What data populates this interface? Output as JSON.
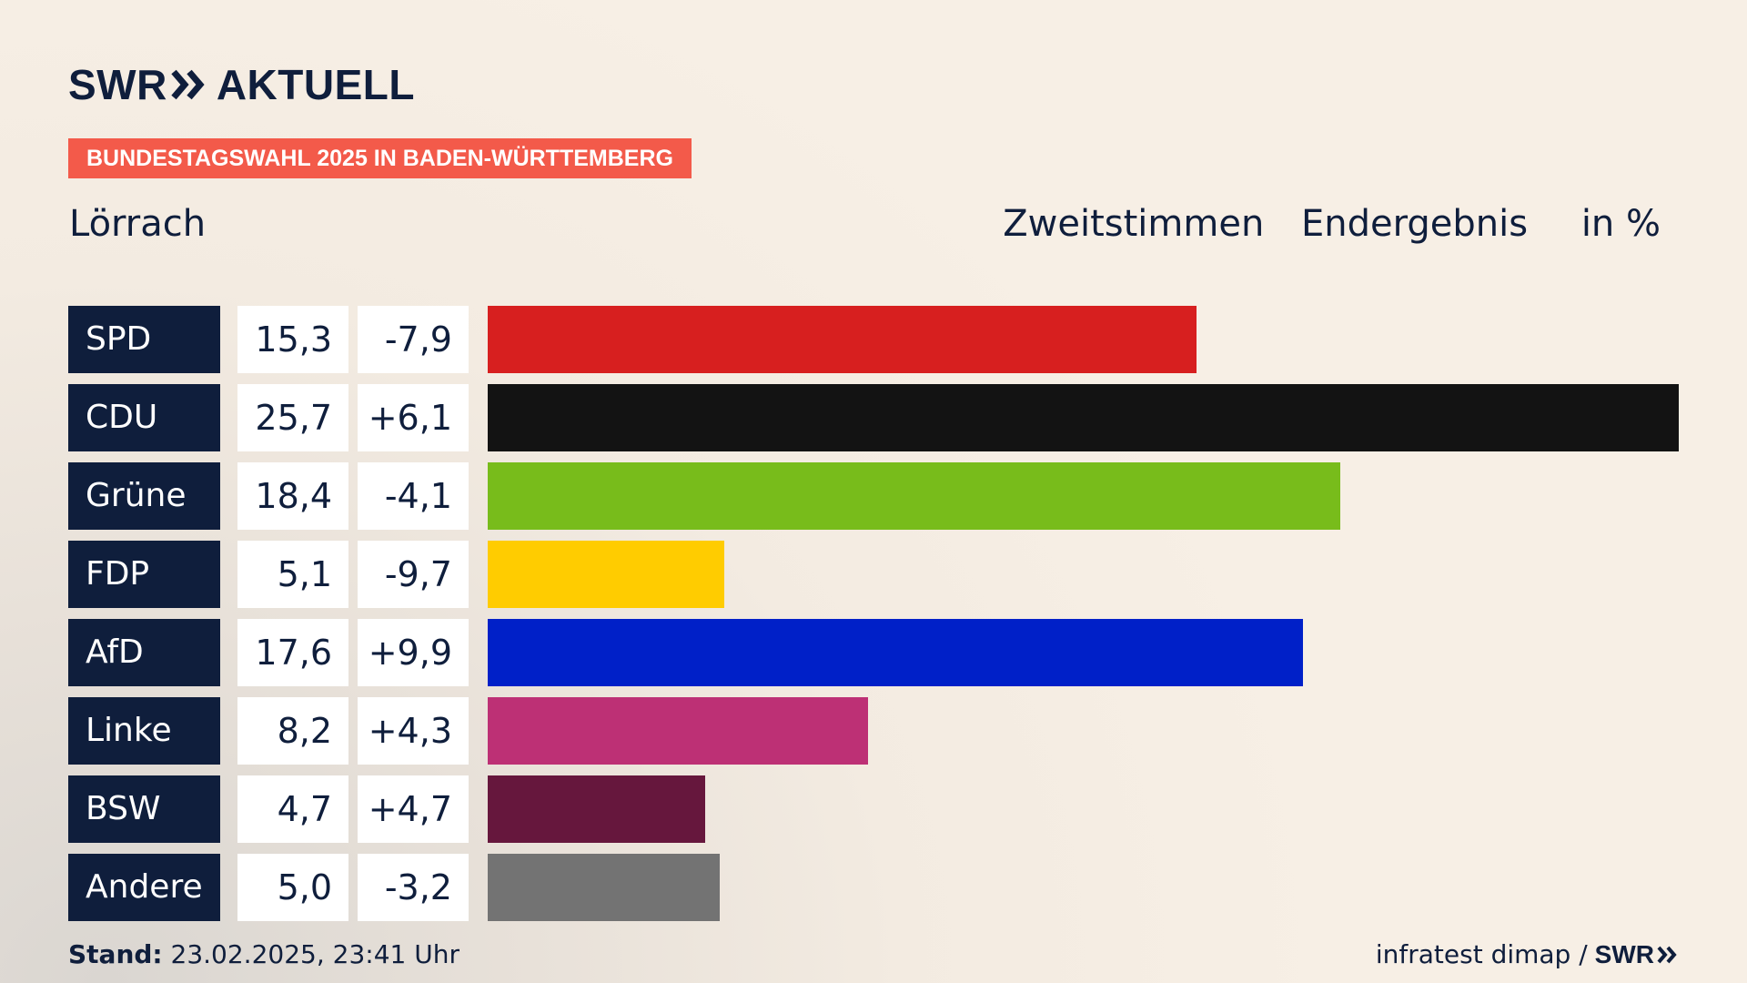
{
  "brand": {
    "logo_swr": "SWR",
    "logo_aktuell": "AKTUELL",
    "chevron_icon": "double-chevron-right-icon"
  },
  "banner": {
    "text": "BUNDESTAGSWAHL 2025 IN BADEN-WÜRTTEMBERG",
    "color": "#f35a4a"
  },
  "header": {
    "region": "Lörrach",
    "subtitle_1": "Zweitstimmen",
    "subtitle_2": "Endergebnis",
    "unit": "in %"
  },
  "chart_data": {
    "type": "bar",
    "orientation": "horizontal",
    "categories": [
      "SPD",
      "CDU",
      "Grüne",
      "FDP",
      "AfD",
      "Linke",
      "BSW",
      "Andere"
    ],
    "values": [
      15.3,
      25.7,
      18.4,
      5.1,
      17.6,
      8.2,
      4.7,
      5.0
    ],
    "value_labels": [
      "15,3",
      "25,7",
      "18,4",
      "5,1",
      "17,6",
      "8,2",
      "4,7",
      "5,0"
    ],
    "diff_labels": [
      "-7,9",
      "+6,1",
      "-4,1",
      "-9,7",
      "+9,9",
      "+4,3",
      "+4,7",
      "-3,2"
    ],
    "colors": [
      "#d71f1f",
      "#131313",
      "#78bc1b",
      "#ffcc00",
      "#0020c8",
      "#bd3075",
      "#66173d",
      "#737373"
    ],
    "xlim": [
      0,
      25.7
    ],
    "grid": false,
    "legend": "none"
  },
  "footer": {
    "stand_label": "Stand:",
    "stand_value": " 23.02.2025, 23:41 Uhr",
    "source": "infratest dimap /",
    "source_brand": "SWR"
  }
}
